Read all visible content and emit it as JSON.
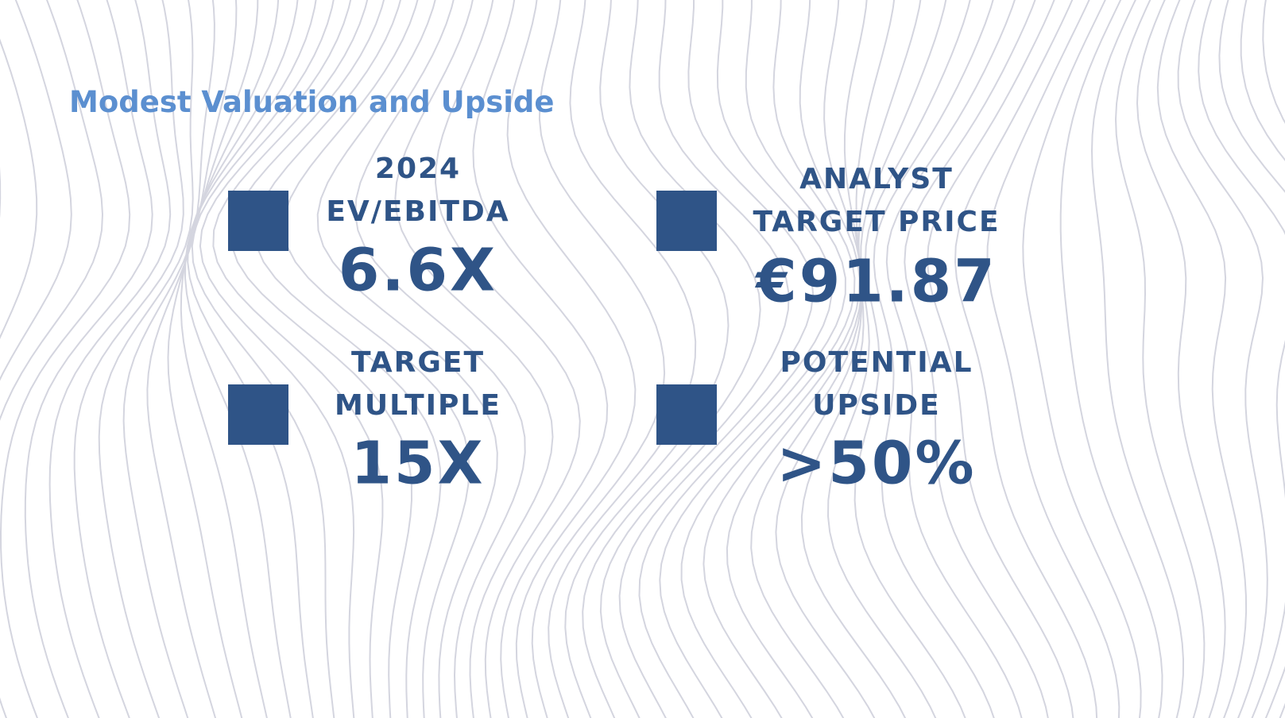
{
  "title": "Modest Valuation and Upside",
  "metrics": [
    {
      "label_lines": [
        "2024",
        "EV/EBITDA"
      ],
      "value": "6.6X"
    },
    {
      "label_lines": [
        "ANALYST",
        "TARGET PRICE"
      ],
      "value": "€91.87"
    },
    {
      "label_lines": [
        "TARGET",
        "MULTIPLE"
      ],
      "value": "15X"
    },
    {
      "label_lines": [
        "POTENTIAL",
        "UPSIDE"
      ],
      "value": ">50%"
    }
  ]
}
